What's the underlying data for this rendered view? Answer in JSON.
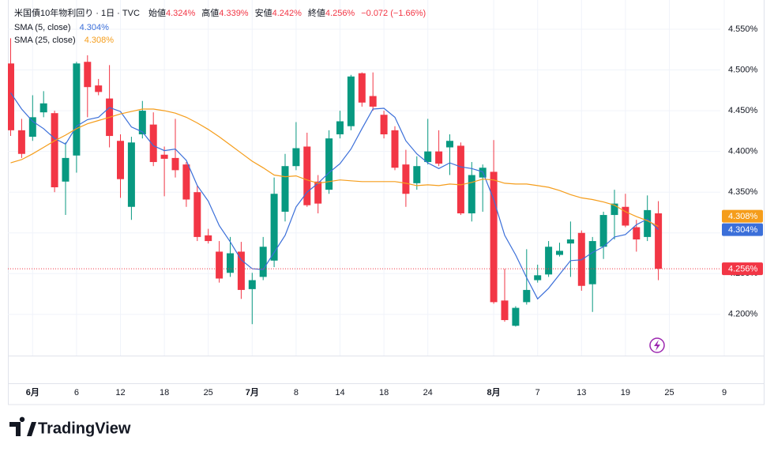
{
  "chart_data": {
    "type": "candlestick",
    "title": "米国債10年物利回り · 1日 · TVC",
    "ohlc": [
      {
        "label": "始値",
        "value": "4.324%"
      },
      {
        "label": "高値",
        "value": "4.339%"
      },
      {
        "label": "安値",
        "value": "4.242%"
      },
      {
        "label": "終値",
        "value": "4.256%"
      }
    ],
    "change": "−0.072 (−1.66%)",
    "up_color": "#089981",
    "down_color": "#f23645",
    "categories": [
      null,
      null,
      "6月",
      null,
      null,
      null,
      "6",
      null,
      null,
      null,
      "12",
      null,
      null,
      null,
      "18",
      null,
      null,
      null,
      "25",
      null,
      null,
      null,
      "7月",
      null,
      null,
      null,
      "8",
      null,
      null,
      null,
      "14",
      null,
      null,
      null,
      "18",
      null,
      null,
      null,
      "24",
      null,
      null,
      null,
      null,
      null,
      "8月",
      null,
      null,
      null,
      "7",
      null,
      null,
      null,
      "13",
      null,
      null,
      null,
      "19",
      null,
      null,
      null,
      "25",
      null,
      null,
      null,
      null,
      "9"
    ],
    "open": [
      4.508,
      4.426,
      4.418,
      4.448,
      4.447,
      4.363,
      4.395,
      4.51,
      4.481,
      4.465,
      4.413,
      4.332,
      4.421,
      4.433,
      4.396,
      4.392,
      4.384,
      4.35,
      4.297,
      4.277,
      4.251,
      4.277,
      4.231,
      4.246,
      4.266,
      4.326,
      4.382,
      4.406,
      4.363,
      4.353,
      4.421,
      4.431,
      4.496,
      4.468,
      4.445,
      4.426,
      4.384,
      4.361,
      4.387,
      4.4,
      4.405,
      4.407,
      4.324,
      4.368,
      4.375,
      4.217,
      4.186,
      4.215,
      4.242,
      4.249,
      4.273,
      4.287,
      4.3,
      4.237,
      4.283,
      4.322,
      4.332,
      4.307,
      4.295,
      4.324,
      null,
      null,
      null,
      null,
      null,
      null
    ],
    "high": [
      4.539,
      4.44,
      4.469,
      4.474,
      4.45,
      4.411,
      4.51,
      4.518,
      4.489,
      4.506,
      4.421,
      4.418,
      4.462,
      4.448,
      4.406,
      4.44,
      4.387,
      4.358,
      4.305,
      4.29,
      4.295,
      4.289,
      4.251,
      4.295,
      4.368,
      4.397,
      4.436,
      4.423,
      4.371,
      4.426,
      4.45,
      4.494,
      4.497,
      4.497,
      4.45,
      4.431,
      4.402,
      4.394,
      4.44,
      4.426,
      4.421,
      4.411,
      4.387,
      4.384,
      4.414,
      4.256,
      4.21,
      4.28,
      4.261,
      4.29,
      4.288,
      4.314,
      4.303,
      4.295,
      4.326,
      4.353,
      4.348,
      4.316,
      4.346,
      4.339,
      null,
      null,
      null,
      null,
      null,
      null
    ],
    "low": [
      4.419,
      4.392,
      4.413,
      4.442,
      4.35,
      4.322,
      4.374,
      4.442,
      4.469,
      4.405,
      4.343,
      4.316,
      4.416,
      4.382,
      4.345,
      4.368,
      4.332,
      4.29,
      4.287,
      4.239,
      4.246,
      4.219,
      4.188,
      4.242,
      4.258,
      4.314,
      4.377,
      4.332,
      4.324,
      4.348,
      4.416,
      4.426,
      4.455,
      4.45,
      4.416,
      4.377,
      4.332,
      4.353,
      4.384,
      4.382,
      4.371,
      4.322,
      4.314,
      4.326,
      4.213,
      4.191,
      4.185,
      4.212,
      4.239,
      4.246,
      4.271,
      4.246,
      4.229,
      4.203,
      4.268,
      4.292,
      4.307,
      4.277,
      4.29,
      4.242,
      null,
      null,
      null,
      null,
      null,
      null
    ],
    "close": [
      4.426,
      4.397,
      4.442,
      4.459,
      4.356,
      4.392,
      4.508,
      4.479,
      4.473,
      4.419,
      4.366,
      4.411,
      4.45,
      4.387,
      4.391,
      4.377,
      4.341,
      4.295,
      4.29,
      4.244,
      4.275,
      4.23,
      4.242,
      4.283,
      4.348,
      4.382,
      4.404,
      4.334,
      4.336,
      4.416,
      4.437,
      4.492,
      4.46,
      4.455,
      4.421,
      4.38,
      4.348,
      4.382,
      4.4,
      4.385,
      4.413,
      4.324,
      4.371,
      4.38,
      4.215,
      4.193,
      4.208,
      4.23,
      4.248,
      4.283,
      4.278,
      4.292,
      4.235,
      4.29,
      4.322,
      4.336,
      4.309,
      4.292,
      4.328,
      4.256,
      null,
      null,
      null,
      null,
      null,
      null
    ],
    "series": [
      {
        "name": "SMA (5, close)",
        "color": "#3b6fd9",
        "last_label": "4.304%",
        "values": [
          4.472,
          4.452,
          4.437,
          4.428,
          4.416,
          4.409,
          4.431,
          4.439,
          4.442,
          4.454,
          4.449,
          4.43,
          4.424,
          4.407,
          4.401,
          4.403,
          4.389,
          4.358,
          4.339,
          4.309,
          4.289,
          4.267,
          4.256,
          4.255,
          4.276,
          4.297,
          4.332,
          4.35,
          4.361,
          4.374,
          4.385,
          4.403,
          4.428,
          4.452,
          4.453,
          4.442,
          4.413,
          4.397,
          4.386,
          4.379,
          4.386,
          4.381,
          4.379,
          4.375,
          4.341,
          4.297,
          4.273,
          4.245,
          4.219,
          4.232,
          4.249,
          4.266,
          4.267,
          4.276,
          4.283,
          4.295,
          4.298,
          4.31,
          4.317,
          4.304,
          null,
          null,
          null,
          null,
          null,
          null
        ]
      },
      {
        "name": "SMA (25, close)",
        "color": "#f59d1b",
        "last_label": "4.308%",
        "values": [
          4.386,
          4.39,
          4.397,
          4.405,
          4.413,
          4.42,
          4.428,
          4.434,
          4.438,
          4.442,
          4.446,
          4.449,
          4.452,
          4.452,
          4.45,
          4.447,
          4.442,
          4.435,
          4.427,
          4.418,
          4.408,
          4.398,
          4.388,
          4.38,
          4.371,
          4.369,
          4.37,
          4.365,
          4.361,
          4.363,
          4.365,
          4.364,
          4.363,
          4.363,
          4.363,
          4.363,
          4.361,
          4.358,
          4.359,
          4.358,
          4.36,
          4.359,
          4.362,
          4.366,
          4.365,
          4.361,
          4.36,
          4.36,
          4.358,
          4.356,
          4.352,
          4.347,
          4.343,
          4.341,
          4.338,
          4.334,
          4.326,
          4.32,
          4.315,
          4.308,
          null,
          null,
          null,
          null,
          null,
          null
        ]
      }
    ],
    "ylim": [
      4.1494,
      4.5859
    ],
    "yticks": [
      {
        "value": 4.2,
        "label": "4.200%"
      },
      {
        "value": 4.25,
        "label": "4.250%"
      },
      {
        "value": 4.3,
        "label": "4.300%"
      },
      {
        "value": 4.35,
        "label": "4.350%"
      },
      {
        "value": 4.4,
        "label": "4.400%"
      },
      {
        "value": 4.45,
        "label": "4.450%"
      },
      {
        "value": 4.5,
        "label": "4.500%"
      },
      {
        "value": 4.55,
        "label": "4.550%"
      }
    ],
    "grid": true,
    "brand": "TradingView"
  }
}
